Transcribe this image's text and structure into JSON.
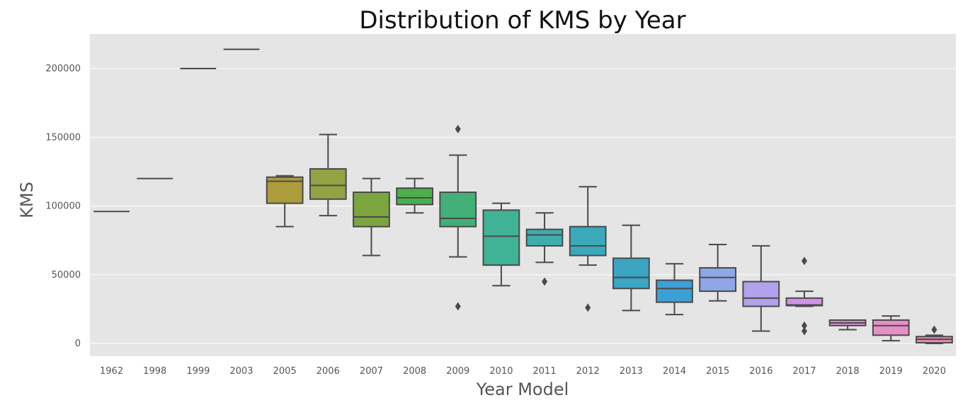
{
  "chart_data": {
    "type": "box",
    "title": "Distribution of KMS by Year",
    "xlabel": "Year Model",
    "ylabel": "KMS",
    "ylim": [
      -10000,
      225000
    ],
    "yticks": [
      0,
      50000,
      100000,
      150000,
      200000
    ],
    "ytick_labels": [
      "0",
      "50000",
      "100000",
      "150000",
      "200000"
    ],
    "grid": true,
    "background": "#e5e5e5",
    "categories": [
      "1962",
      "1998",
      "1999",
      "2003",
      "2005",
      "2006",
      "2007",
      "2008",
      "2009",
      "2010",
      "2011",
      "2012",
      "2013",
      "2014",
      "2015",
      "2016",
      "2017",
      "2018",
      "2019",
      "2020"
    ],
    "boxes": [
      {
        "year": "1962",
        "min": 96000,
        "q1": 96000,
        "median": 96000,
        "q3": 96000,
        "max": 96000,
        "outliers": [],
        "color": "#e1847b"
      },
      {
        "year": "1998",
        "min": 120000,
        "q1": 120000,
        "median": 120000,
        "q3": 120000,
        "max": 120000,
        "outliers": [],
        "color": "#d99a5c"
      },
      {
        "year": "1999",
        "min": 200000,
        "q1": 200000,
        "median": 200000,
        "q3": 200000,
        "max": 200000,
        "outliers": [],
        "color": "#c7a04b"
      },
      {
        "year": "2003",
        "min": 214000,
        "q1": 214000,
        "median": 214000,
        "q3": 214000,
        "max": 214000,
        "outliers": [],
        "color": "#b5a33b"
      },
      {
        "year": "2005",
        "min": 85000,
        "q1": 102000,
        "median": 118000,
        "q3": 121000,
        "max": 122000,
        "outliers": [],
        "color": "#ac9c3c"
      },
      {
        "year": "2006",
        "min": 93000,
        "q1": 105000,
        "median": 115000,
        "q3": 127000,
        "max": 152000,
        "outliers": [],
        "color": "#93a243"
      },
      {
        "year": "2007",
        "min": 64000,
        "q1": 85000,
        "median": 92000,
        "q3": 110000,
        "max": 120000,
        "outliers": [],
        "color": "#7ba63f"
      },
      {
        "year": "2008",
        "min": 95000,
        "q1": 101000,
        "median": 106000,
        "q3": 113000,
        "max": 120000,
        "outliers": [],
        "color": "#4ab04b"
      },
      {
        "year": "2009",
        "min": 63000,
        "q1": 85000,
        "median": 91000,
        "q3": 110000,
        "max": 137000,
        "outliers": [
          27000,
          156000
        ],
        "color": "#43b077"
      },
      {
        "year": "2010",
        "min": 42000,
        "q1": 57000,
        "median": 78000,
        "q3": 97000,
        "max": 102000,
        "outliers": [],
        "color": "#40b296"
      },
      {
        "year": "2011",
        "min": 59000,
        "q1": 71000,
        "median": 79000,
        "q3": 83000,
        "max": 95000,
        "outliers": [
          45000
        ],
        "color": "#3eadab"
      },
      {
        "year": "2012",
        "min": 57000,
        "q1": 64000,
        "median": 71000,
        "q3": 85000,
        "max": 114000,
        "outliers": [
          26000
        ],
        "color": "#3aaabb"
      },
      {
        "year": "2013",
        "min": 24000,
        "q1": 40000,
        "median": 48000,
        "q3": 62000,
        "max": 86000,
        "outliers": [],
        "color": "#3ba5c2"
      },
      {
        "year": "2014",
        "min": 21000,
        "q1": 30000,
        "median": 40000,
        "q3": 46000,
        "max": 58000,
        "outliers": [],
        "color": "#3e9fd6"
      },
      {
        "year": "2015",
        "min": 31000,
        "q1": 38000,
        "median": 48000,
        "q3": 55000,
        "max": 72000,
        "outliers": [],
        "color": "#8ea7e6"
      },
      {
        "year": "2016",
        "min": 9000,
        "q1": 27000,
        "median": 33000,
        "q3": 45000,
        "max": 71000,
        "outliers": [],
        "color": "#b2a1ec"
      },
      {
        "year": "2017",
        "min": 27000,
        "q1": 27500,
        "median": 28000,
        "q3": 33000,
        "max": 38000,
        "outliers": [
          60000,
          13000,
          9000
        ],
        "color": "#cf93e8"
      },
      {
        "year": "2018",
        "min": 10000,
        "q1": 13000,
        "median": 15000,
        "q3": 17000,
        "max": 17000,
        "outliers": [],
        "color": "#dc8fd8"
      },
      {
        "year": "2019",
        "min": 2000,
        "q1": 6000,
        "median": 13000,
        "q3": 17000,
        "max": 20000,
        "outliers": [],
        "color": "#e68fc6"
      },
      {
        "year": "2020",
        "min": 0,
        "q1": 500,
        "median": 3000,
        "q3": 5000,
        "max": 6000,
        "outliers": [
          10000
        ],
        "color": "#e88ab4"
      }
    ]
  }
}
